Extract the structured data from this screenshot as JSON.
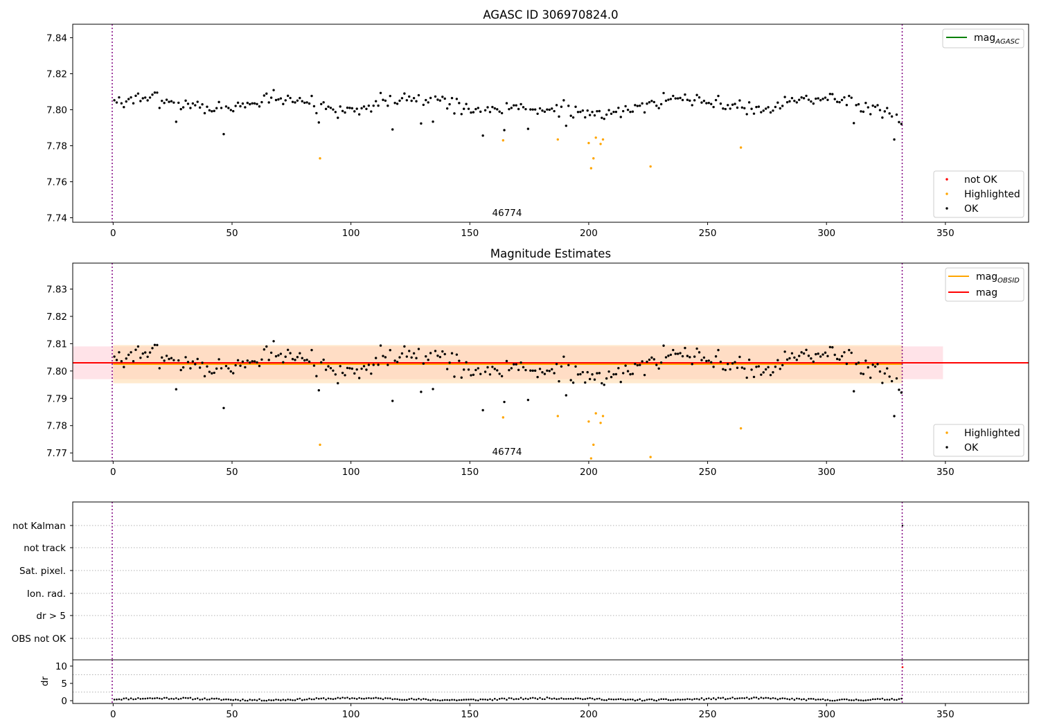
{
  "colors": {
    "ok": "#000000",
    "highlighted": "#ffa500",
    "not_ok": "#ff0000",
    "mag_aca": "#008000",
    "mag_obsid": "#ffa500",
    "mag": "#ff0000",
    "obsid_line": "#800080",
    "band_mag": "#ffc0cb",
    "band_obsid": "#ffd8a8"
  },
  "chart_data": [
    {
      "type": "scatter",
      "title": "AGASC ID 306970824.0",
      "xlim": [
        -17,
        385
      ],
      "ylim": [
        7.7375,
        7.8475
      ],
      "xticks": [
        0,
        50,
        100,
        150,
        200,
        250,
        300,
        350
      ],
      "yticks": [
        7.74,
        7.76,
        7.78,
        7.8,
        7.82,
        7.84
      ],
      "obsid_label": "46774",
      "obsid_label_x": 166,
      "obsid_boundaries": [
        0,
        332
      ],
      "legend_top": {
        "placement": "upper-right",
        "entries": [
          {
            "label": "mag",
            "sub": "AGASC",
            "kind": "line",
            "color_key": "mag_aca"
          }
        ]
      },
      "legend_bottom": {
        "placement": "lower-right",
        "entries": [
          {
            "label": "not OK",
            "kind": "dot",
            "color_key": "not_ok"
          },
          {
            "label": "Highlighted",
            "kind": "dot",
            "color_key": "highlighted"
          },
          {
            "label": "OK",
            "kind": "dot",
            "color_key": "ok"
          }
        ]
      },
      "series": [
        {
          "name": "OK",
          "seed": 7,
          "n": 332,
          "base": 7.8035,
          "wiggle": 0.003,
          "noise": 0.006
        },
        {
          "name": "Highlighted",
          "points": [
            [
              87,
              7.773
            ],
            [
              164,
              7.783
            ],
            [
              187,
              7.7835
            ],
            [
              200,
              7.7815
            ],
            [
              201,
              7.7675
            ],
            [
              202,
              7.773
            ],
            [
              203,
              7.7845
            ],
            [
              205,
              7.781
            ],
            [
              206,
              7.7835
            ],
            [
              226,
              7.7685
            ],
            [
              264,
              7.779
            ]
          ]
        }
      ]
    },
    {
      "type": "scatter",
      "title": "Magnitude Estimates",
      "xlim": [
        -17,
        385
      ],
      "ylim": [
        7.767,
        7.8395
      ],
      "xticks": [
        0,
        50,
        100,
        150,
        200,
        250,
        300,
        350
      ],
      "yticks": [
        7.77,
        7.78,
        7.79,
        7.8,
        7.81,
        7.82,
        7.83
      ],
      "obsid_label": "46774",
      "obsid_label_x": 166,
      "obsid_boundaries": [
        0,
        332
      ],
      "mag": 7.803,
      "mag_band": [
        7.797,
        7.809
      ],
      "mag_span": [
        -17,
        349
      ],
      "mag_obsid": 7.8025,
      "mag_obsid_band": [
        7.7955,
        7.8095
      ],
      "mag_obsid_span": [
        0,
        332
      ],
      "legend_top": {
        "placement": "upper-right",
        "entries": [
          {
            "label": "mag",
            "sub": "OBSID",
            "kind": "line",
            "color_key": "mag_obsid"
          },
          {
            "label": "mag",
            "sub": "",
            "kind": "line",
            "color_key": "mag"
          }
        ]
      },
      "legend_bottom": {
        "placement": "lower-right",
        "entries": [
          {
            "label": "Highlighted",
            "kind": "dot",
            "color_key": "highlighted"
          },
          {
            "label": "OK",
            "kind": "dot",
            "color_key": "ok"
          }
        ]
      },
      "series": [
        {
          "name": "OK",
          "seed": 7,
          "n": 332,
          "base": 7.8035,
          "wiggle": 0.003,
          "noise": 0.006
        },
        {
          "name": "Highlighted",
          "points": [
            [
              87,
              7.773
            ],
            [
              164,
              7.783
            ],
            [
              187,
              7.7835
            ],
            [
              200,
              7.7815
            ],
            [
              201,
              7.768
            ],
            [
              202,
              7.773
            ],
            [
              203,
              7.7845
            ],
            [
              205,
              7.781
            ],
            [
              206,
              7.7835
            ],
            [
              226,
              7.7685
            ],
            [
              264,
              7.779
            ]
          ]
        }
      ]
    },
    {
      "type": "scatter",
      "xlim": [
        -17,
        385
      ],
      "categories": [
        "not Kalman",
        "not track",
        "Sat. pixel.",
        "Ion. rad.",
        "dr > 5",
        "OBS not OK"
      ],
      "obsid_boundaries": [
        0,
        332
      ],
      "flagged": [
        {
          "x": 332,
          "category": "not Kalman"
        }
      ]
    },
    {
      "type": "scatter",
      "ylabel": "dr",
      "xlim": [
        -17,
        385
      ],
      "ylim": [
        -0.8,
        11.8
      ],
      "xticks": [
        0,
        50,
        100,
        150,
        200,
        250,
        300,
        350
      ],
      "yticks": [
        0,
        5,
        10
      ],
      "obsid_boundaries": [
        0,
        332
      ],
      "series": [
        {
          "name": "OK",
          "seed": 11,
          "n": 332,
          "base": 0.45,
          "noise": 0.5
        },
        {
          "name": "not OK",
          "points": [
            [
              332,
              9.7
            ]
          ]
        }
      ]
    }
  ]
}
